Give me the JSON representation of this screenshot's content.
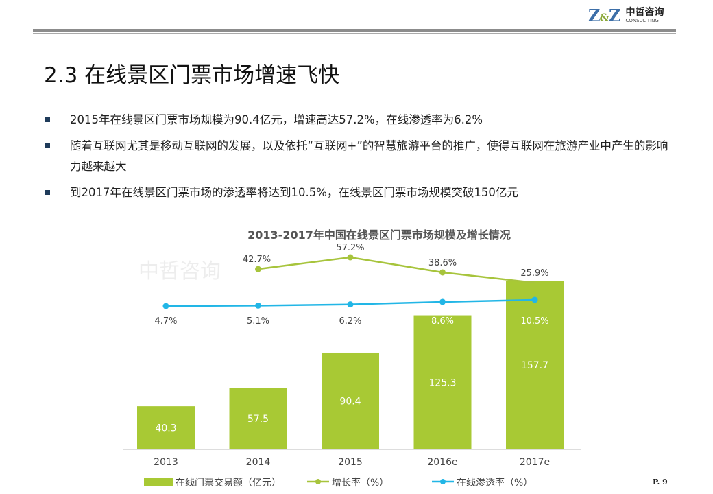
{
  "header": {
    "logo_mark": "Z&Z",
    "logo_cn": "中哲咨询",
    "logo_en": "CONSUL TING"
  },
  "slide": {
    "title": "2.3 在线景区门票市场增速飞快",
    "page": "P. 9"
  },
  "bullets": [
    "2015年在线景区门票市场规模为90.4亿元，增速高达57.2%，在线渗透率为6.2%",
    "随着互联网尤其是移动互联网的发展，以及依托“互联网+”的智慧旅游平台的推广，使得互联网在旅游产业中产生的影响力越来越大",
    "到2017年在线景区门票市场的渗透率将达到10.5%，在线景区门票市场规模突破150亿元"
  ],
  "colors": {
    "bar": "#a8c934",
    "growth": "#a7c43c",
    "penetration": "#22b6e6"
  },
  "chart_data": {
    "type": "bar",
    "title": "2013-2017年中国在线景区门票市场规模及增长情况",
    "watermark": "中哲咨询",
    "categories": [
      "2013",
      "2014",
      "2015",
      "2016e",
      "2017e"
    ],
    "series": [
      {
        "name": "在线门票交易额（亿元）",
        "type": "bar",
        "values": [
          40.3,
          57.5,
          90.4,
          125.3,
          157.7
        ],
        "labels": [
          "40.3",
          "57.5",
          "90.4",
          "125.3",
          "157.7"
        ]
      },
      {
        "name": "增长率（%）",
        "type": "line",
        "values": [
          null,
          42.7,
          57.2,
          38.6,
          25.9
        ],
        "labels": [
          "",
          "42.7%",
          "57.2%",
          "38.6%",
          "25.9%"
        ]
      },
      {
        "name": "在线渗透率（%）",
        "type": "line",
        "values": [
          4.7,
          5.1,
          6.2,
          8.6,
          10.5
        ],
        "labels": [
          "4.7%",
          "5.1%",
          "6.2%",
          "8.6%",
          "10.5%"
        ]
      }
    ],
    "ylim": [
      0,
      160
    ],
    "legend": "bottom",
    "grid": false
  }
}
